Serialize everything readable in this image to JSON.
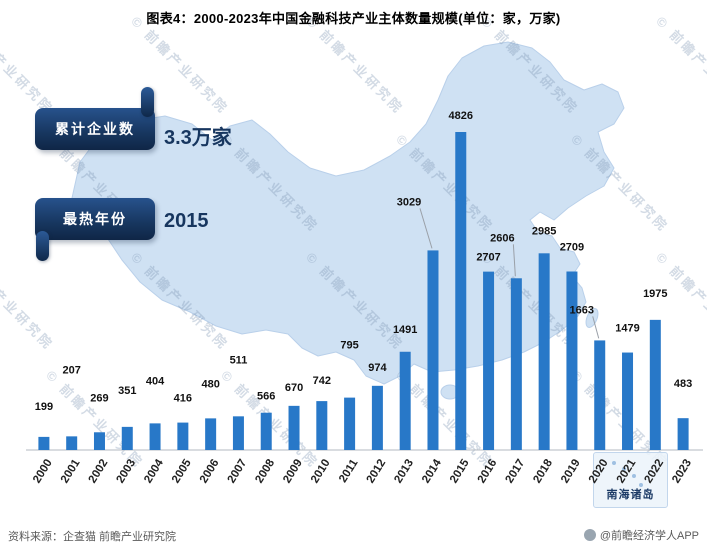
{
  "page": {
    "watermark": {
      "symbol": "©",
      "text": "前瞻产业研究院"
    },
    "map_inset_label": "南海诸岛",
    "footer": {
      "source": "资料来源：企查猫 前瞻产业研究院",
      "credit": "@前瞻经济学人APP"
    }
  },
  "badges": [
    {
      "label": "累计企业数",
      "value": "3.3万家"
    },
    {
      "label": "最热年份",
      "value": "2015"
    }
  ],
  "chart_data": {
    "type": "bar",
    "title": "图表4：2000-2023年中国金融科技产业主体数量规模(单位：家，万家)",
    "unit": "家",
    "categories": [
      "2000",
      "2001",
      "2002",
      "2003",
      "2004",
      "2005",
      "2006",
      "2007",
      "2008",
      "2009",
      "2010",
      "2011",
      "2012",
      "2013",
      "2014",
      "2015",
      "2016",
      "2017",
      "2018",
      "2019",
      "2020",
      "2021",
      "2022",
      "2023"
    ],
    "values": [
      199,
      207,
      269,
      351,
      404,
      416,
      480,
      511,
      566,
      670,
      742,
      795,
      974,
      1491,
      3029,
      4826,
      2707,
      2606,
      2985,
      2709,
      1663,
      1479,
      1975,
      483
    ],
    "xlabel": "",
    "ylabel": "",
    "ylim": [
      0,
      5000
    ],
    "grid": false,
    "legend": false,
    "bar_color": "#2878c8",
    "value_label_color": "#111111",
    "axis_label_color": "#222222",
    "label_dy": {
      "0": -20,
      "1": -56,
      "2": -24,
      "3": -26,
      "4": -32,
      "5": -14,
      "6": -24,
      "7": -46,
      "8": -6,
      "9": -8,
      "10": -10,
      "11": -42,
      "12": -8,
      "13": -12,
      "14": -38,
      "15": -6,
      "16": -4,
      "17": -30,
      "18": -12,
      "19": -14,
      "20": -20,
      "21": -14,
      "22": -16,
      "23": -24
    },
    "label_dx": {
      "14": -24,
      "17": -14,
      "20": -18
    },
    "leaders": [
      14,
      17,
      20
    ]
  }
}
